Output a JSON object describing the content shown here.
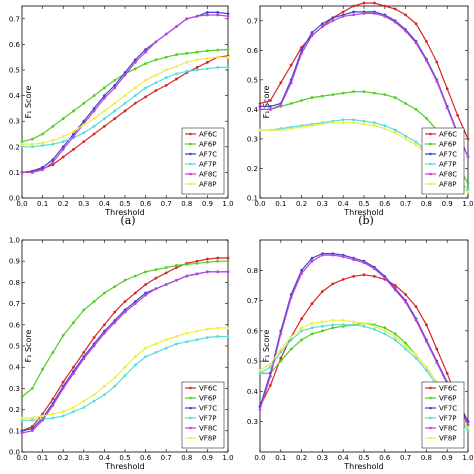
{
  "chart_data": [
    {
      "type": "line",
      "caption": "(a)",
      "xlabel": "Threshold",
      "ylabel": "F₁ Score",
      "xlim": [
        0.0,
        1.0
      ],
      "ylim": [
        0.0,
        0.75
      ],
      "xticks": [
        "0.0",
        "0.1",
        "0.2",
        "0.3",
        "0.4",
        "0.5",
        "0.6",
        "0.7",
        "0.8",
        "0.9",
        "1.0"
      ],
      "yticks": [
        "0.0",
        "0.1",
        "0.2",
        "0.3",
        "0.4",
        "0.5",
        "0.6",
        "0.7"
      ],
      "legend_position": "lower-right",
      "x": [
        0.0,
        0.05,
        0.1,
        0.15,
        0.2,
        0.25,
        0.3,
        0.35,
        0.4,
        0.45,
        0.5,
        0.55,
        0.6,
        0.65,
        0.7,
        0.75,
        0.8,
        0.85,
        0.9,
        0.95,
        1.0
      ],
      "series": [
        {
          "name": "AF6C",
          "color": "#d62728",
          "values": [
            0.1,
            0.1,
            0.115,
            0.13,
            0.16,
            0.19,
            0.22,
            0.25,
            0.28,
            0.31,
            0.34,
            0.37,
            0.395,
            0.42,
            0.44,
            0.465,
            0.49,
            0.51,
            0.53,
            0.55,
            0.555
          ]
        },
        {
          "name": "AF6P",
          "color": "#55cc22",
          "values": [
            0.22,
            0.23,
            0.25,
            0.28,
            0.31,
            0.34,
            0.37,
            0.4,
            0.43,
            0.46,
            0.485,
            0.505,
            0.525,
            0.54,
            0.55,
            0.56,
            0.565,
            0.57,
            0.575,
            0.578,
            0.58
          ]
        },
        {
          "name": "AF7C",
          "color": "#4444cc",
          "values": [
            0.1,
            0.105,
            0.12,
            0.15,
            0.2,
            0.25,
            0.3,
            0.35,
            0.4,
            0.44,
            0.49,
            0.54,
            0.58,
            0.61,
            0.64,
            0.67,
            0.7,
            0.71,
            0.725,
            0.725,
            0.72
          ]
        },
        {
          "name": "AF7P",
          "color": "#55dddd",
          "values": [
            0.2,
            0.2,
            0.205,
            0.21,
            0.22,
            0.235,
            0.255,
            0.28,
            0.31,
            0.34,
            0.37,
            0.4,
            0.43,
            0.45,
            0.47,
            0.485,
            0.495,
            0.5,
            0.505,
            0.51,
            0.51
          ]
        },
        {
          "name": "AF8C",
          "color": "#bb44dd",
          "values": [
            0.1,
            0.1,
            0.11,
            0.14,
            0.19,
            0.24,
            0.29,
            0.34,
            0.39,
            0.43,
            0.48,
            0.53,
            0.57,
            0.61,
            0.64,
            0.67,
            0.7,
            0.71,
            0.715,
            0.715,
            0.71
          ]
        },
        {
          "name": "AF8P",
          "color": "#eeee44",
          "values": [
            0.21,
            0.21,
            0.215,
            0.225,
            0.24,
            0.26,
            0.285,
            0.31,
            0.34,
            0.37,
            0.4,
            0.43,
            0.46,
            0.48,
            0.5,
            0.515,
            0.53,
            0.54,
            0.545,
            0.55,
            0.55
          ]
        }
      ]
    },
    {
      "type": "line",
      "caption": "(b)",
      "xlabel": "Threshold",
      "ylabel": "F₁ Score",
      "xlim": [
        0.0,
        1.0
      ],
      "ylim": [
        0.1,
        0.75
      ],
      "xticks": [
        "0.0",
        "0.1",
        "0.2",
        "0.3",
        "0.4",
        "0.5",
        "0.6",
        "0.7",
        "0.8",
        "0.9",
        "1.0"
      ],
      "yticks": [
        "0.1",
        "0.2",
        "0.3",
        "0.4",
        "0.5",
        "0.6",
        "0.7"
      ],
      "legend_position": "lower-right",
      "x": [
        0.0,
        0.05,
        0.1,
        0.15,
        0.2,
        0.25,
        0.3,
        0.35,
        0.4,
        0.45,
        0.5,
        0.55,
        0.6,
        0.65,
        0.7,
        0.75,
        0.8,
        0.85,
        0.9,
        0.95,
        1.0
      ],
      "series": [
        {
          "name": "AF6C",
          "color": "#d62728",
          "values": [
            0.42,
            0.43,
            0.49,
            0.55,
            0.61,
            0.65,
            0.68,
            0.71,
            0.73,
            0.75,
            0.76,
            0.76,
            0.75,
            0.74,
            0.72,
            0.69,
            0.63,
            0.56,
            0.47,
            0.38,
            0.3
          ]
        },
        {
          "name": "AF6P",
          "color": "#55cc22",
          "values": [
            0.4,
            0.4,
            0.41,
            0.42,
            0.43,
            0.44,
            0.445,
            0.45,
            0.455,
            0.46,
            0.46,
            0.455,
            0.45,
            0.44,
            0.42,
            0.4,
            0.37,
            0.33,
            0.27,
            0.21,
            0.15
          ]
        },
        {
          "name": "AF7C",
          "color": "#4444cc",
          "values": [
            0.41,
            0.41,
            0.42,
            0.5,
            0.6,
            0.66,
            0.69,
            0.71,
            0.72,
            0.73,
            0.73,
            0.73,
            0.72,
            0.7,
            0.67,
            0.63,
            0.57,
            0.5,
            0.41,
            0.32,
            0.24
          ]
        },
        {
          "name": "AF7P",
          "color": "#55dddd",
          "values": [
            0.33,
            0.33,
            0.335,
            0.34,
            0.345,
            0.35,
            0.355,
            0.36,
            0.365,
            0.365,
            0.36,
            0.355,
            0.345,
            0.33,
            0.31,
            0.29,
            0.26,
            0.23,
            0.2,
            0.16,
            0.13
          ]
        },
        {
          "name": "AF8C",
          "color": "#bb44dd",
          "values": [
            0.4,
            0.4,
            0.415,
            0.49,
            0.59,
            0.65,
            0.68,
            0.7,
            0.715,
            0.72,
            0.725,
            0.725,
            0.715,
            0.695,
            0.665,
            0.625,
            0.565,
            0.495,
            0.405,
            0.315,
            0.24
          ]
        },
        {
          "name": "AF8P",
          "color": "#eeee44",
          "values": [
            0.33,
            0.33,
            0.33,
            0.335,
            0.34,
            0.345,
            0.35,
            0.355,
            0.355,
            0.355,
            0.35,
            0.345,
            0.335,
            0.32,
            0.3,
            0.28,
            0.25,
            0.22,
            0.19,
            0.15,
            0.12
          ]
        }
      ]
    },
    {
      "type": "line",
      "caption": "",
      "xlabel": "Threshold",
      "ylabel": "F₁ Score",
      "xlim": [
        0.0,
        1.0
      ],
      "ylim": [
        0.0,
        1.0
      ],
      "xticks": [
        "0.0",
        "0.1",
        "0.2",
        "0.3",
        "0.4",
        "0.5",
        "0.6",
        "0.7",
        "0.8",
        "0.9",
        "1.0"
      ],
      "yticks": [
        "0.0",
        "0.1",
        "0.2",
        "0.3",
        "0.4",
        "0.5",
        "0.6",
        "0.7",
        "0.8",
        "0.9",
        "1.0"
      ],
      "legend_position": "lower-right",
      "x": [
        0.0,
        0.05,
        0.1,
        0.15,
        0.2,
        0.25,
        0.3,
        0.35,
        0.4,
        0.45,
        0.5,
        0.55,
        0.6,
        0.65,
        0.7,
        0.75,
        0.8,
        0.85,
        0.9,
        0.95,
        1.0
      ],
      "series": [
        {
          "name": "VF6C",
          "color": "#d62728",
          "values": [
            0.1,
            0.12,
            0.18,
            0.25,
            0.33,
            0.4,
            0.47,
            0.54,
            0.6,
            0.66,
            0.71,
            0.75,
            0.79,
            0.82,
            0.845,
            0.87,
            0.89,
            0.9,
            0.91,
            0.915,
            0.915
          ]
        },
        {
          "name": "VF6P",
          "color": "#55cc22",
          "values": [
            0.26,
            0.3,
            0.39,
            0.47,
            0.55,
            0.61,
            0.67,
            0.71,
            0.75,
            0.78,
            0.81,
            0.83,
            0.85,
            0.86,
            0.87,
            0.88,
            0.885,
            0.89,
            0.895,
            0.9,
            0.9
          ]
        },
        {
          "name": "VF7C",
          "color": "#4444cc",
          "values": [
            0.1,
            0.11,
            0.16,
            0.23,
            0.31,
            0.38,
            0.45,
            0.51,
            0.57,
            0.62,
            0.67,
            0.71,
            0.75,
            0.77,
            0.79,
            0.81,
            0.83,
            0.84,
            0.85,
            0.85,
            0.85
          ]
        },
        {
          "name": "VF7P",
          "color": "#55dddd",
          "values": [
            0.15,
            0.15,
            0.155,
            0.16,
            0.17,
            0.19,
            0.21,
            0.24,
            0.27,
            0.31,
            0.36,
            0.41,
            0.45,
            0.47,
            0.49,
            0.51,
            0.52,
            0.53,
            0.54,
            0.545,
            0.545
          ]
        },
        {
          "name": "VF8C",
          "color": "#bb44dd",
          "values": [
            0.09,
            0.1,
            0.15,
            0.22,
            0.3,
            0.37,
            0.44,
            0.5,
            0.56,
            0.61,
            0.66,
            0.7,
            0.74,
            0.77,
            0.79,
            0.81,
            0.83,
            0.84,
            0.85,
            0.85,
            0.85
          ]
        },
        {
          "name": "VF8P",
          "color": "#eeee44",
          "values": [
            0.16,
            0.16,
            0.17,
            0.18,
            0.19,
            0.21,
            0.24,
            0.27,
            0.31,
            0.35,
            0.4,
            0.45,
            0.49,
            0.51,
            0.53,
            0.545,
            0.56,
            0.57,
            0.58,
            0.585,
            0.585
          ]
        }
      ]
    },
    {
      "type": "line",
      "caption": "",
      "xlabel": "Threshold",
      "ylabel": "F₁ Score",
      "xlim": [
        0.0,
        1.0
      ],
      "ylim": [
        0.2,
        0.9
      ],
      "xticks": [
        "0.0",
        "0.1",
        "0.2",
        "0.3",
        "0.4",
        "0.5",
        "0.6",
        "0.7",
        "0.8",
        "0.9",
        "1.0"
      ],
      "yticks": [
        "0.3",
        "0.4",
        "0.5",
        "0.6",
        "0.7",
        "0.8"
      ],
      "legend_position": "lower-right",
      "x": [
        0.0,
        0.05,
        0.1,
        0.15,
        0.2,
        0.25,
        0.3,
        0.35,
        0.4,
        0.45,
        0.5,
        0.55,
        0.6,
        0.65,
        0.7,
        0.75,
        0.8,
        0.85,
        0.9,
        0.95,
        1.0
      ],
      "series": [
        {
          "name": "VF6C",
          "color": "#d62728",
          "values": [
            0.35,
            0.42,
            0.51,
            0.58,
            0.64,
            0.69,
            0.73,
            0.755,
            0.77,
            0.78,
            0.785,
            0.78,
            0.77,
            0.75,
            0.72,
            0.68,
            0.62,
            0.54,
            0.46,
            0.37,
            0.3
          ]
        },
        {
          "name": "VF6P",
          "color": "#55cc22",
          "values": [
            0.46,
            0.46,
            0.5,
            0.54,
            0.57,
            0.59,
            0.6,
            0.61,
            0.615,
            0.62,
            0.625,
            0.62,
            0.61,
            0.59,
            0.56,
            0.52,
            0.48,
            0.43,
            0.38,
            0.33,
            0.28
          ]
        },
        {
          "name": "VF7C",
          "color": "#4444cc",
          "values": [
            0.35,
            0.46,
            0.6,
            0.72,
            0.8,
            0.84,
            0.855,
            0.855,
            0.85,
            0.84,
            0.83,
            0.81,
            0.78,
            0.74,
            0.7,
            0.64,
            0.57,
            0.5,
            0.43,
            0.36,
            0.3
          ]
        },
        {
          "name": "VF7P",
          "color": "#55dddd",
          "values": [
            0.46,
            0.48,
            0.53,
            0.57,
            0.6,
            0.61,
            0.615,
            0.62,
            0.62,
            0.62,
            0.615,
            0.605,
            0.59,
            0.57,
            0.54,
            0.51,
            0.47,
            0.42,
            0.37,
            0.32,
            0.27
          ]
        },
        {
          "name": "VF8C",
          "color": "#bb44dd",
          "values": [
            0.34,
            0.45,
            0.59,
            0.71,
            0.79,
            0.83,
            0.85,
            0.85,
            0.845,
            0.835,
            0.825,
            0.805,
            0.775,
            0.735,
            0.695,
            0.635,
            0.565,
            0.495,
            0.425,
            0.355,
            0.29
          ]
        },
        {
          "name": "VF8P",
          "color": "#eeee44",
          "values": [
            0.47,
            0.49,
            0.54,
            0.58,
            0.61,
            0.625,
            0.63,
            0.635,
            0.635,
            0.63,
            0.625,
            0.615,
            0.6,
            0.58,
            0.55,
            0.52,
            0.48,
            0.43,
            0.38,
            0.33,
            0.28
          ]
        }
      ]
    }
  ]
}
